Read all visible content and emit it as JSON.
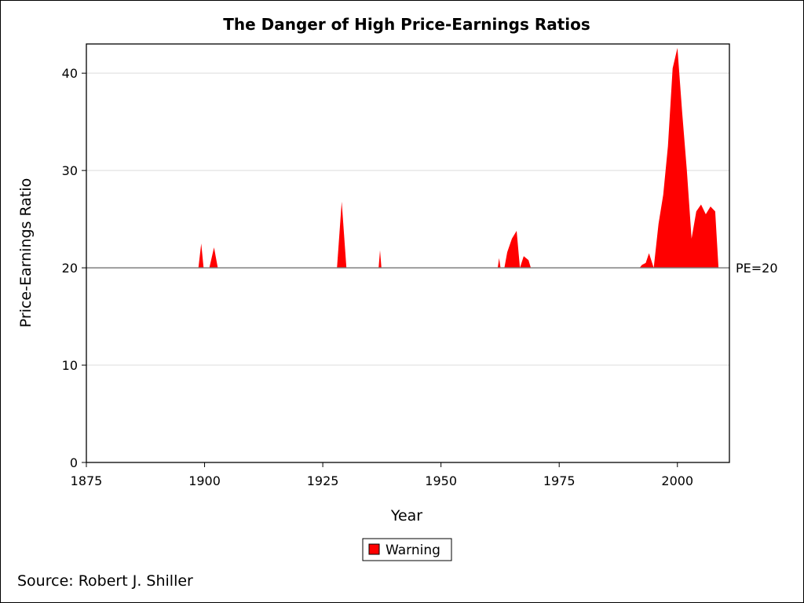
{
  "chart_data": {
    "type": "area",
    "title": "The Danger of High Price-Earnings Ratios",
    "xlabel": "Year",
    "ylabel": "Price-Earnings Ratio",
    "xlim": [
      1875,
      2011
    ],
    "ylim": [
      0,
      43
    ],
    "x_ticks": [
      1875,
      1900,
      1925,
      1950,
      1975,
      2000
    ],
    "y_ticks": [
      0,
      10,
      20,
      30,
      40
    ],
    "grid": "horizontal",
    "reference_line": {
      "value": 20,
      "label": "PE=20"
    },
    "legend": {
      "position": "bottom-center",
      "entries": [
        "Warning"
      ]
    },
    "series": [
      {
        "name": "Warning",
        "color": "#ff0000",
        "baseline": 20,
        "segments": [
          [
            [
              1898.7,
              20
            ],
            [
              1899.3,
              22.5
            ],
            [
              1899.8,
              20
            ]
          ],
          [
            [
              1901,
              20
            ],
            [
              1902,
              22.1
            ],
            [
              1902.8,
              20
            ]
          ],
          [
            [
              1928,
              20
            ],
            [
              1929,
              26.8
            ],
            [
              1930,
              20
            ]
          ],
          [
            [
              1936.8,
              20
            ],
            [
              1937.1,
              21.8
            ],
            [
              1937.4,
              20
            ]
          ],
          [
            [
              1962,
              20
            ],
            [
              1962.3,
              21
            ],
            [
              1962.6,
              20
            ]
          ],
          [
            [
              1963.4,
              20
            ],
            [
              1964,
              21.6
            ],
            [
              1965,
              23
            ],
            [
              1966,
              23.8
            ],
            [
              1966.7,
              20
            ],
            [
              1967.5,
              21.2
            ],
            [
              1968.5,
              20.8
            ],
            [
              1969,
              20
            ]
          ],
          [
            [
              1992,
              20
            ],
            [
              1992.5,
              20.3
            ],
            [
              1993.3,
              20.5
            ],
            [
              1994,
              21.5
            ],
            [
              1995,
              20
            ],
            [
              1996,
              24.5
            ],
            [
              1997,
              27.5
            ],
            [
              1998,
              32.5
            ],
            [
              1999,
              40.5
            ],
            [
              2000,
              42.6
            ],
            [
              2001,
              36
            ],
            [
              2002,
              30
            ],
            [
              2003,
              23
            ],
            [
              2004,
              25.8
            ],
            [
              2005,
              26.5
            ],
            [
              2006,
              25.5
            ],
            [
              2007,
              26.3
            ],
            [
              2008,
              25.8
            ],
            [
              2008.7,
              20
            ]
          ]
        ]
      }
    ],
    "source": "Source: Robert J. Shiller"
  }
}
